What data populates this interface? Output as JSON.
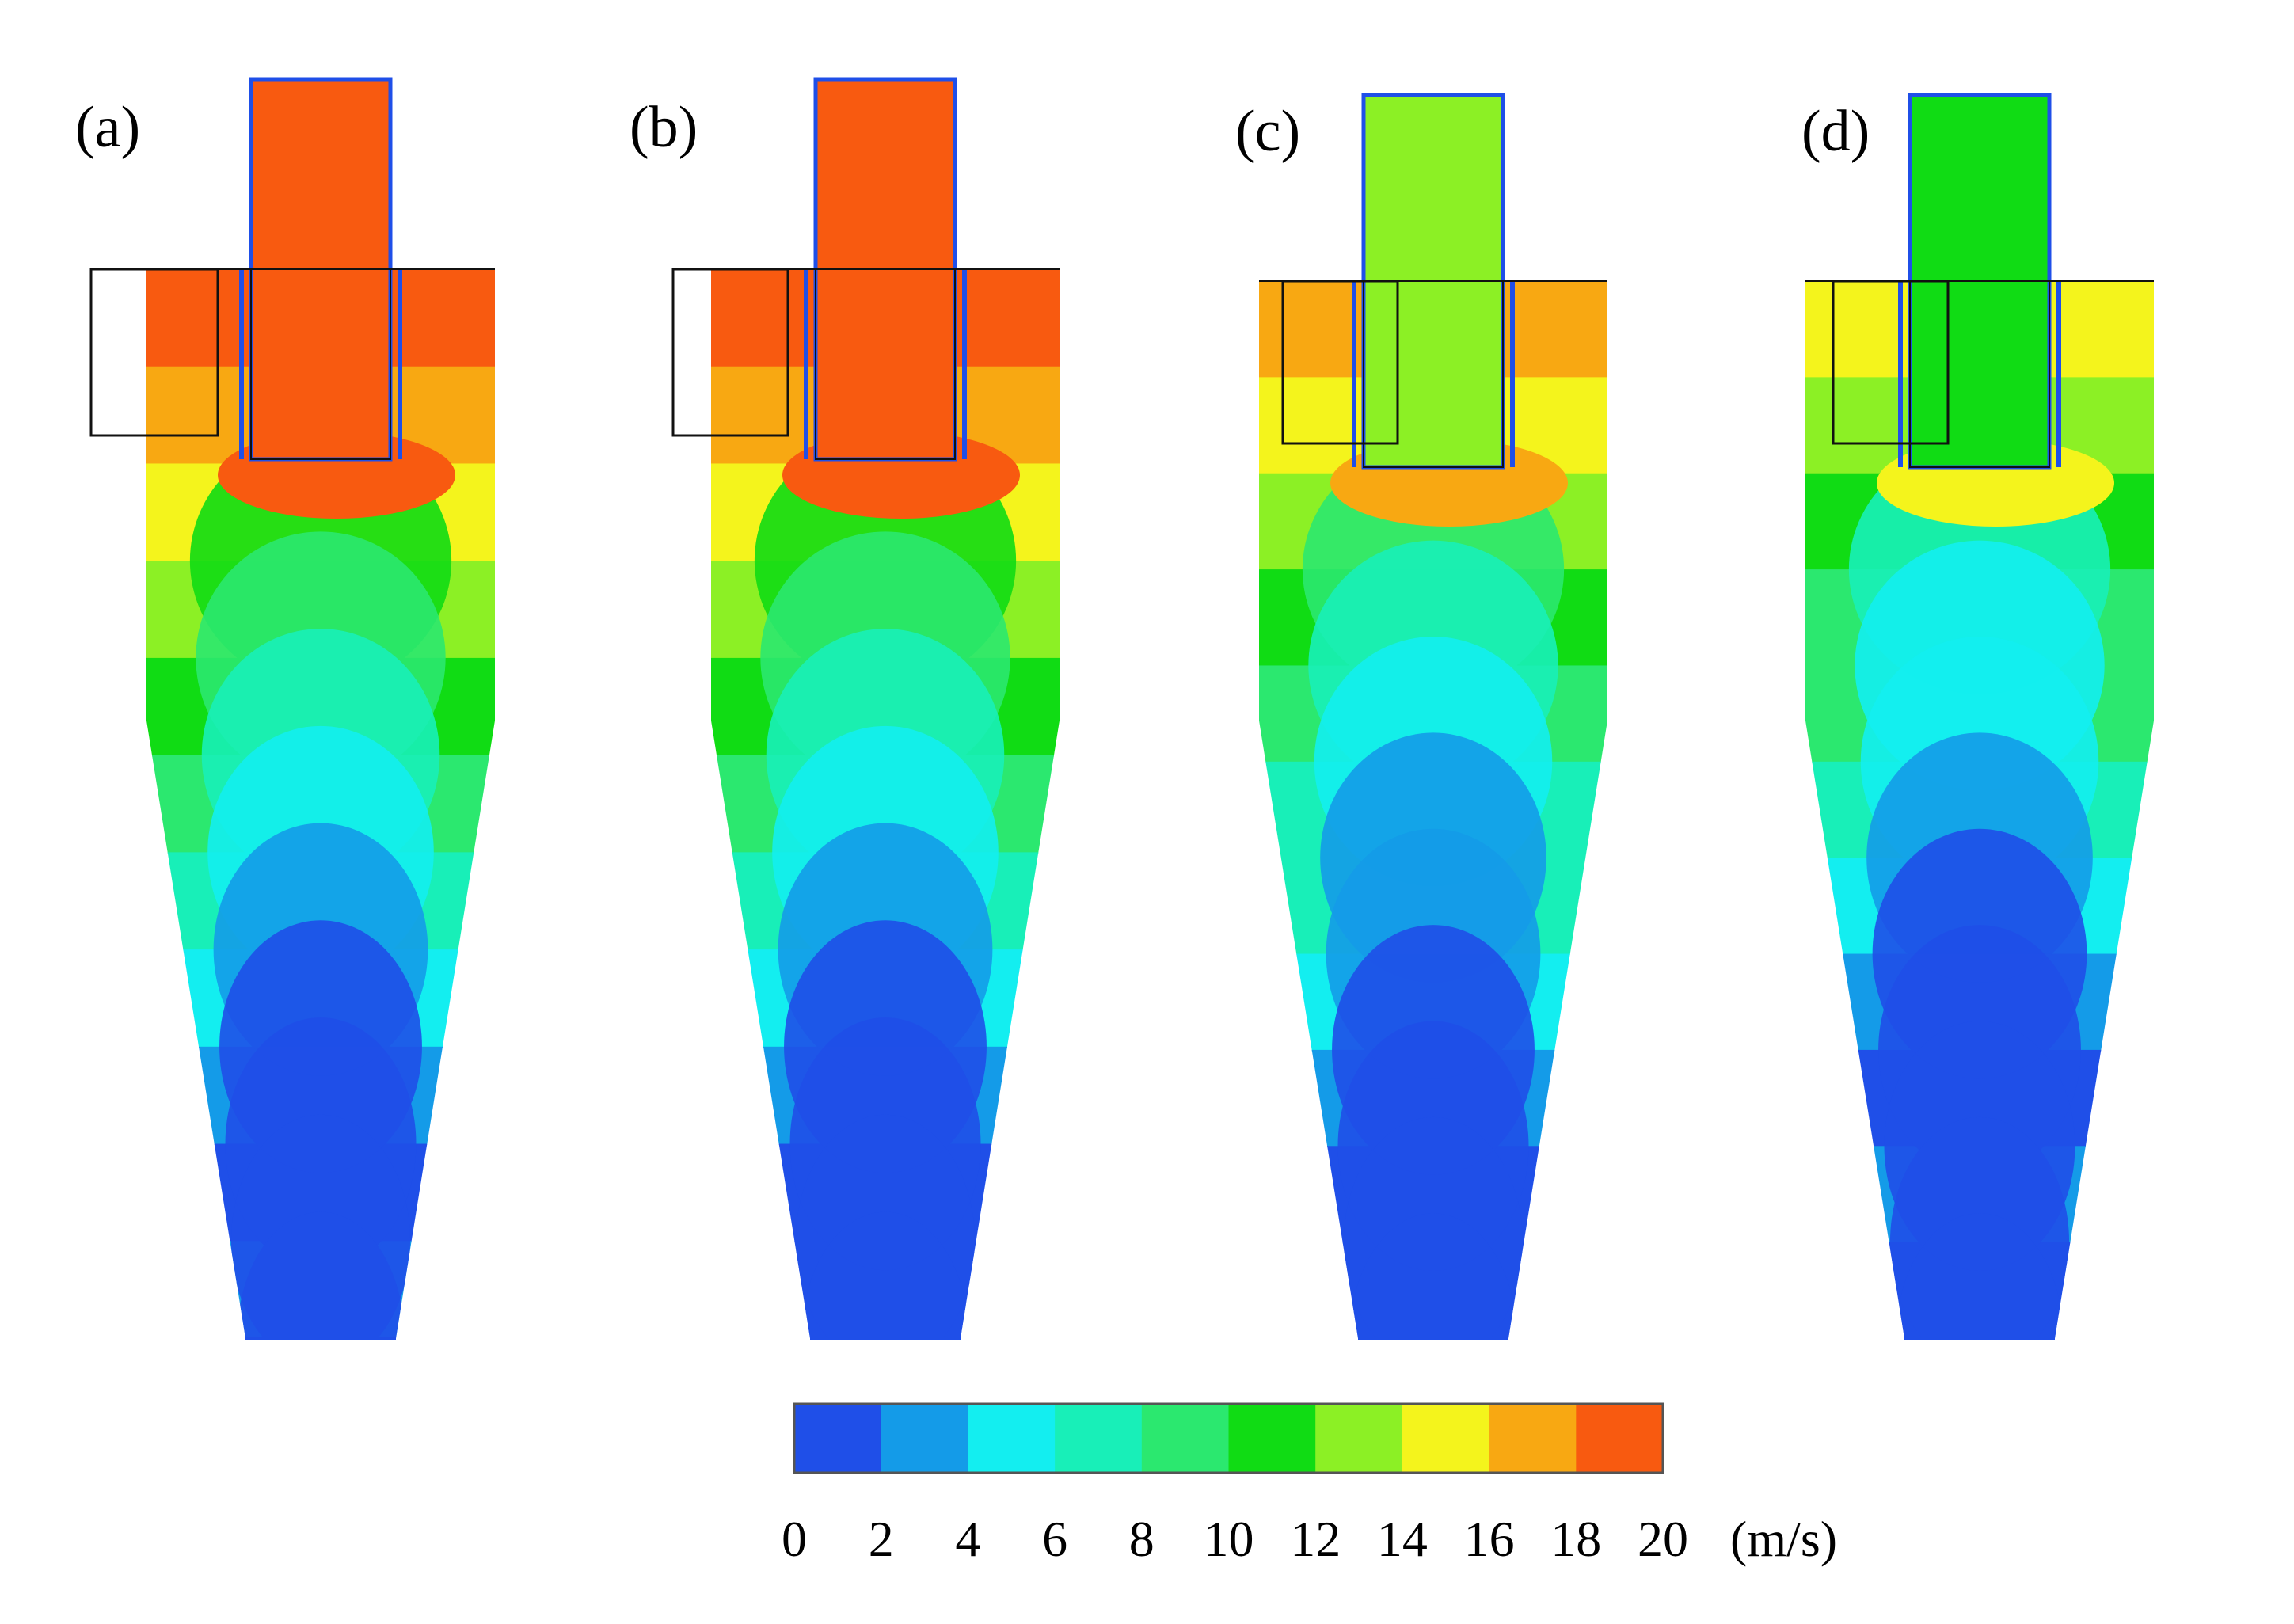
{
  "panels": [
    {
      "label": "(a)",
      "variant": "a"
    },
    {
      "label": "(b)",
      "variant": "b"
    },
    {
      "label": "(c)",
      "variant": "c"
    },
    {
      "label": "(d)",
      "variant": "d"
    }
  ],
  "colorbar": {
    "ticks": [
      "0",
      "2",
      "4",
      "6",
      "8",
      "10",
      "12",
      "14",
      "16",
      "18",
      "20"
    ],
    "unit": "(m/s)",
    "colors": [
      "#1f4fe8",
      "#149be8",
      "#13eef0",
      "#18efb8",
      "#2be86f",
      "#10dc14",
      "#8cf025",
      "#f4f41c",
      "#f8a812",
      "#f85a10"
    ]
  }
}
